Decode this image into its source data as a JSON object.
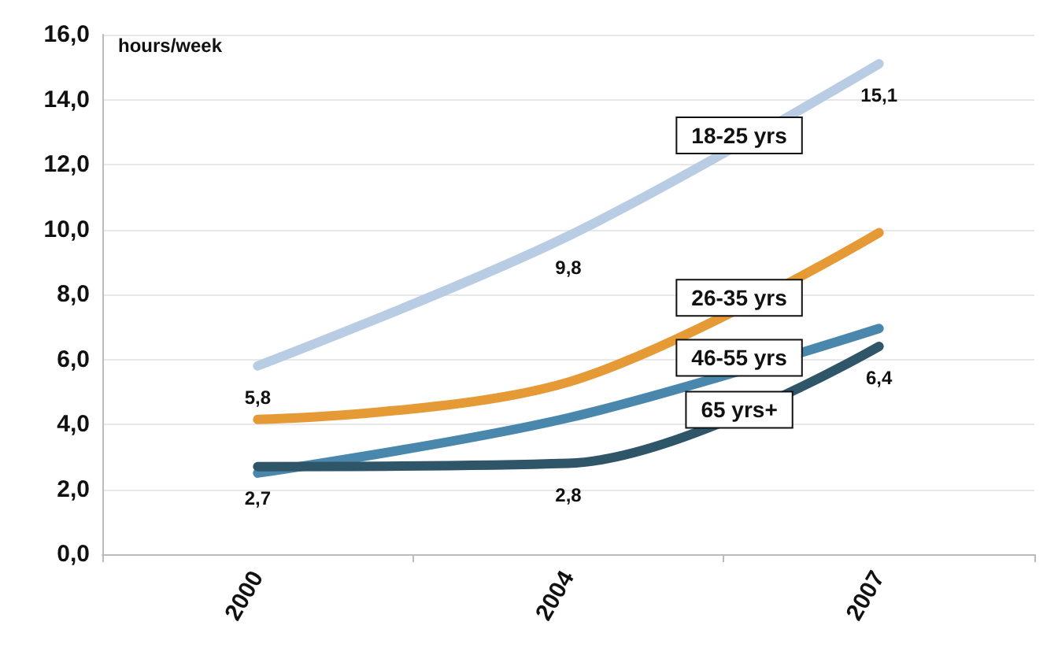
{
  "chart_data": {
    "type": "line",
    "ylabel": "hours/week",
    "categories": [
      "2000",
      "2004",
      "2007"
    ],
    "series": [
      {
        "name": "18-25 yrs",
        "color": "#b8cce4",
        "values": [
          5.8,
          9.8,
          15.1
        ],
        "value_labels": [
          "5,8",
          "9,8",
          "15,1"
        ]
      },
      {
        "name": "26-35 yrs",
        "color": "#e59a35",
        "values": [
          4.15,
          5.3,
          9.9
        ]
      },
      {
        "name": "46-55 yrs",
        "color": "#4a87ad",
        "values": [
          2.5,
          4.2,
          6.95
        ]
      },
      {
        "name": "65 yrs+",
        "color": "#2f5569",
        "values": [
          2.7,
          2.8,
          6.4
        ],
        "value_labels": [
          "2,7",
          "2,8",
          "6,4"
        ]
      }
    ],
    "ylim": [
      0,
      16
    ],
    "yticks": [
      {
        "value": 0,
        "label": "0,0"
      },
      {
        "value": 2,
        "label": "2,0"
      },
      {
        "value": 4,
        "label": "4,0"
      },
      {
        "value": 6,
        "label": "6,0"
      },
      {
        "value": 8,
        "label": "8,0"
      },
      {
        "value": 10,
        "label": "10,0"
      },
      {
        "value": 12,
        "label": "12,0"
      },
      {
        "value": 14,
        "label": "14,0"
      },
      {
        "value": 16,
        "label": "16,0"
      }
    ],
    "grid": "y",
    "legend": false,
    "marker": "none",
    "line_style": "solid"
  }
}
